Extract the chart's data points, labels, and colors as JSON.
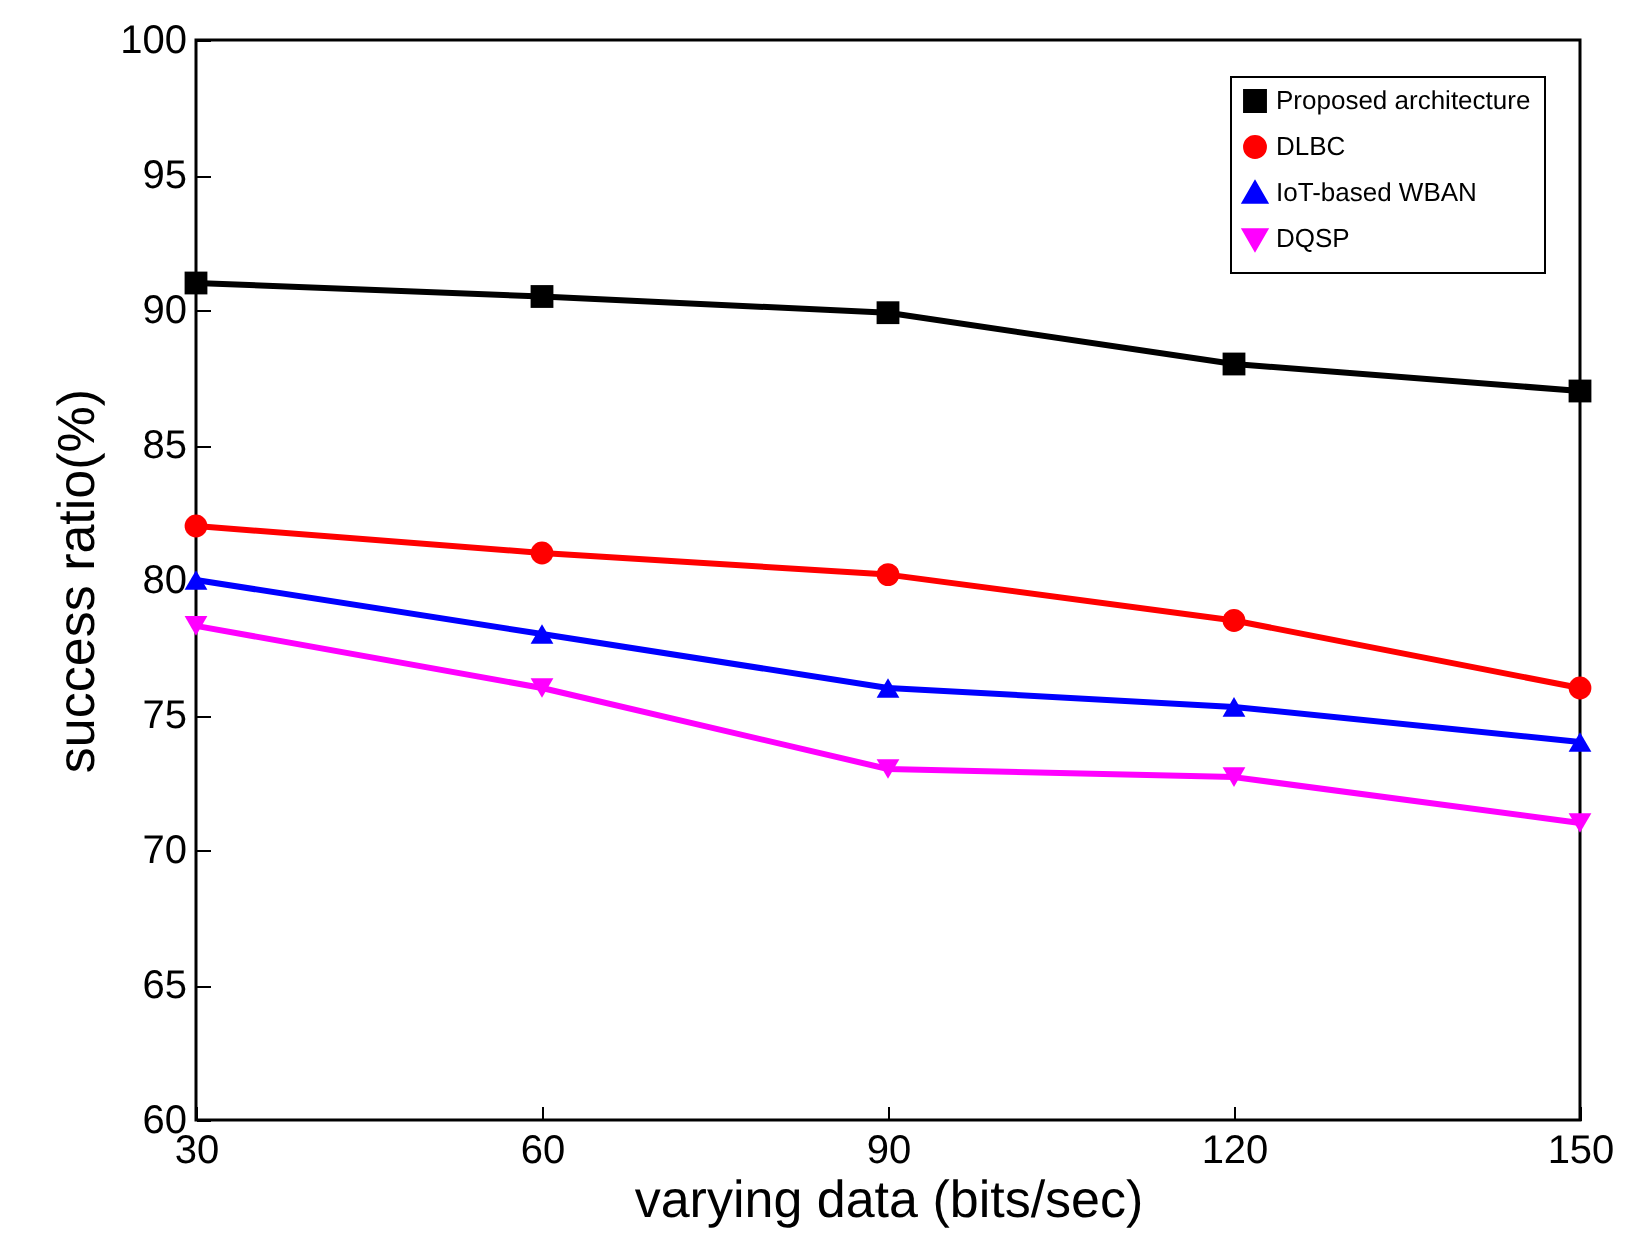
{
  "chart_data": {
    "type": "line",
    "xlabel": "varying data (bits/sec)",
    "ylabel": "success ratio(%)",
    "x": [
      30,
      60,
      90,
      120,
      150
    ],
    "xlim": [
      30,
      150
    ],
    "xticks": [
      30,
      60,
      90,
      120,
      150
    ],
    "ylim": [
      60,
      100
    ],
    "yticks": [
      60,
      65,
      70,
      75,
      80,
      85,
      90,
      95,
      100
    ],
    "grid": false,
    "legend": "top right",
    "line_style": "solid",
    "series": [
      {
        "name": "Proposed architecture",
        "color": "#000000",
        "marker": "square",
        "values": [
          91,
          90.5,
          89.9,
          88,
          87
        ]
      },
      {
        "name": "DLBC",
        "color": "#ff0000",
        "marker": "circle",
        "values": [
          82,
          81,
          80.2,
          78.5,
          76
        ]
      },
      {
        "name": "IoT-based WBAN",
        "color": "#0000ff",
        "marker": "triangle",
        "values": [
          80,
          78,
          76,
          75.3,
          74
        ]
      },
      {
        "name": "DQSP",
        "color": "#ff00ff",
        "marker": "triangle-down",
        "values": [
          78.3,
          76,
          73,
          72.7,
          71
        ]
      }
    ]
  }
}
